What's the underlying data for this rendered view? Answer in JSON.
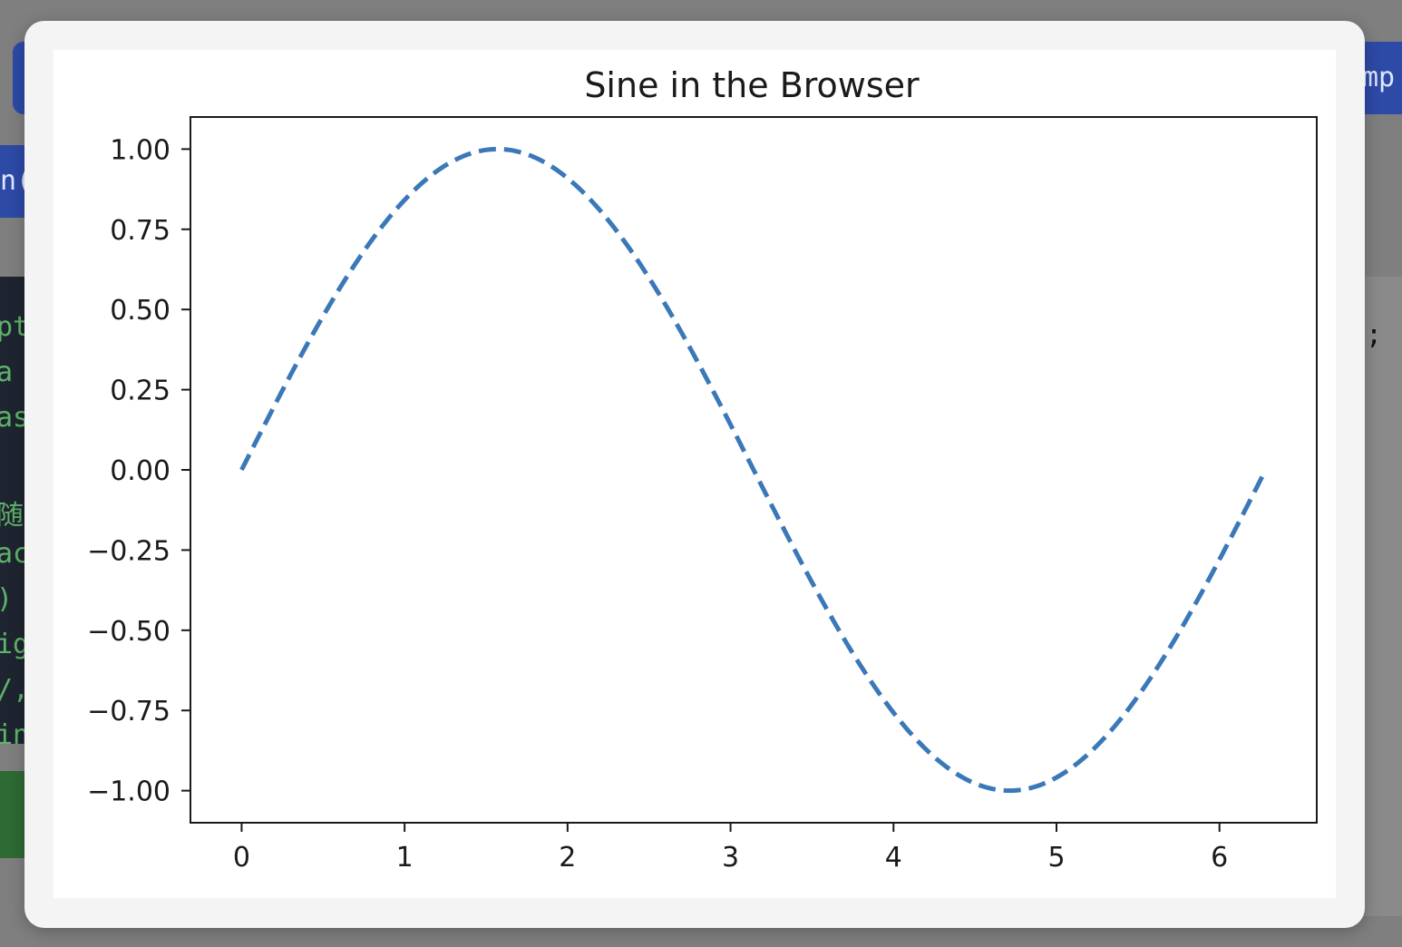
{
  "background": {
    "left_button_text": "n(",
    "right_button_text": "mp",
    "code_fragments": [
      "pt",
      " a",
      "as",
      "",
      "随軸",
      "ac",
      ")",
      "ig",
      "/,",
      "in"
    ],
    "right_code_text": "e; "
  },
  "chart_data": {
    "type": "line",
    "title": "Sine in the Browser",
    "xlabel": "",
    "ylabel": "",
    "xlim": [
      -0.314,
      6.597
    ],
    "ylim": [
      -1.1,
      1.1
    ],
    "xticks": [
      0,
      1,
      2,
      3,
      4,
      5,
      6
    ],
    "xtick_labels": [
      "0",
      "1",
      "2",
      "3",
      "4",
      "5",
      "6"
    ],
    "yticks": [
      1.0,
      0.75,
      0.5,
      0.25,
      0.0,
      -0.25,
      -0.5,
      -0.75,
      -1.0
    ],
    "ytick_labels": [
      "1.00",
      "0.75",
      "0.50",
      "0.25",
      "0.00",
      "−0.25",
      "−0.50",
      "−0.75",
      "−1.00"
    ],
    "grid": false,
    "series": [
      {
        "function": "sin(x)",
        "linestyle": "dashed",
        "color": "#3a78b8",
        "x_range": [
          0,
          6.2832
        ],
        "x": [
          0,
          0.2618,
          0.5236,
          0.7854,
          1.0472,
          1.309,
          1.5708,
          1.8326,
          2.0944,
          2.3562,
          2.618,
          2.8798,
          3.1416,
          3.4034,
          3.6652,
          3.927,
          4.1888,
          4.4506,
          4.7124,
          4.9742,
          5.236,
          5.4978,
          5.7596,
          6.0214,
          6.2832
        ],
        "y": [
          0,
          0.2588,
          0.5,
          0.7071,
          0.866,
          0.9659,
          1,
          0.9659,
          0.866,
          0.7071,
          0.5,
          0.2588,
          0,
          -0.2588,
          -0.5,
          -0.7071,
          -0.866,
          -0.9659,
          -1,
          -0.9659,
          -0.866,
          -0.7071,
          -0.5,
          -0.2588,
          0
        ]
      }
    ]
  }
}
